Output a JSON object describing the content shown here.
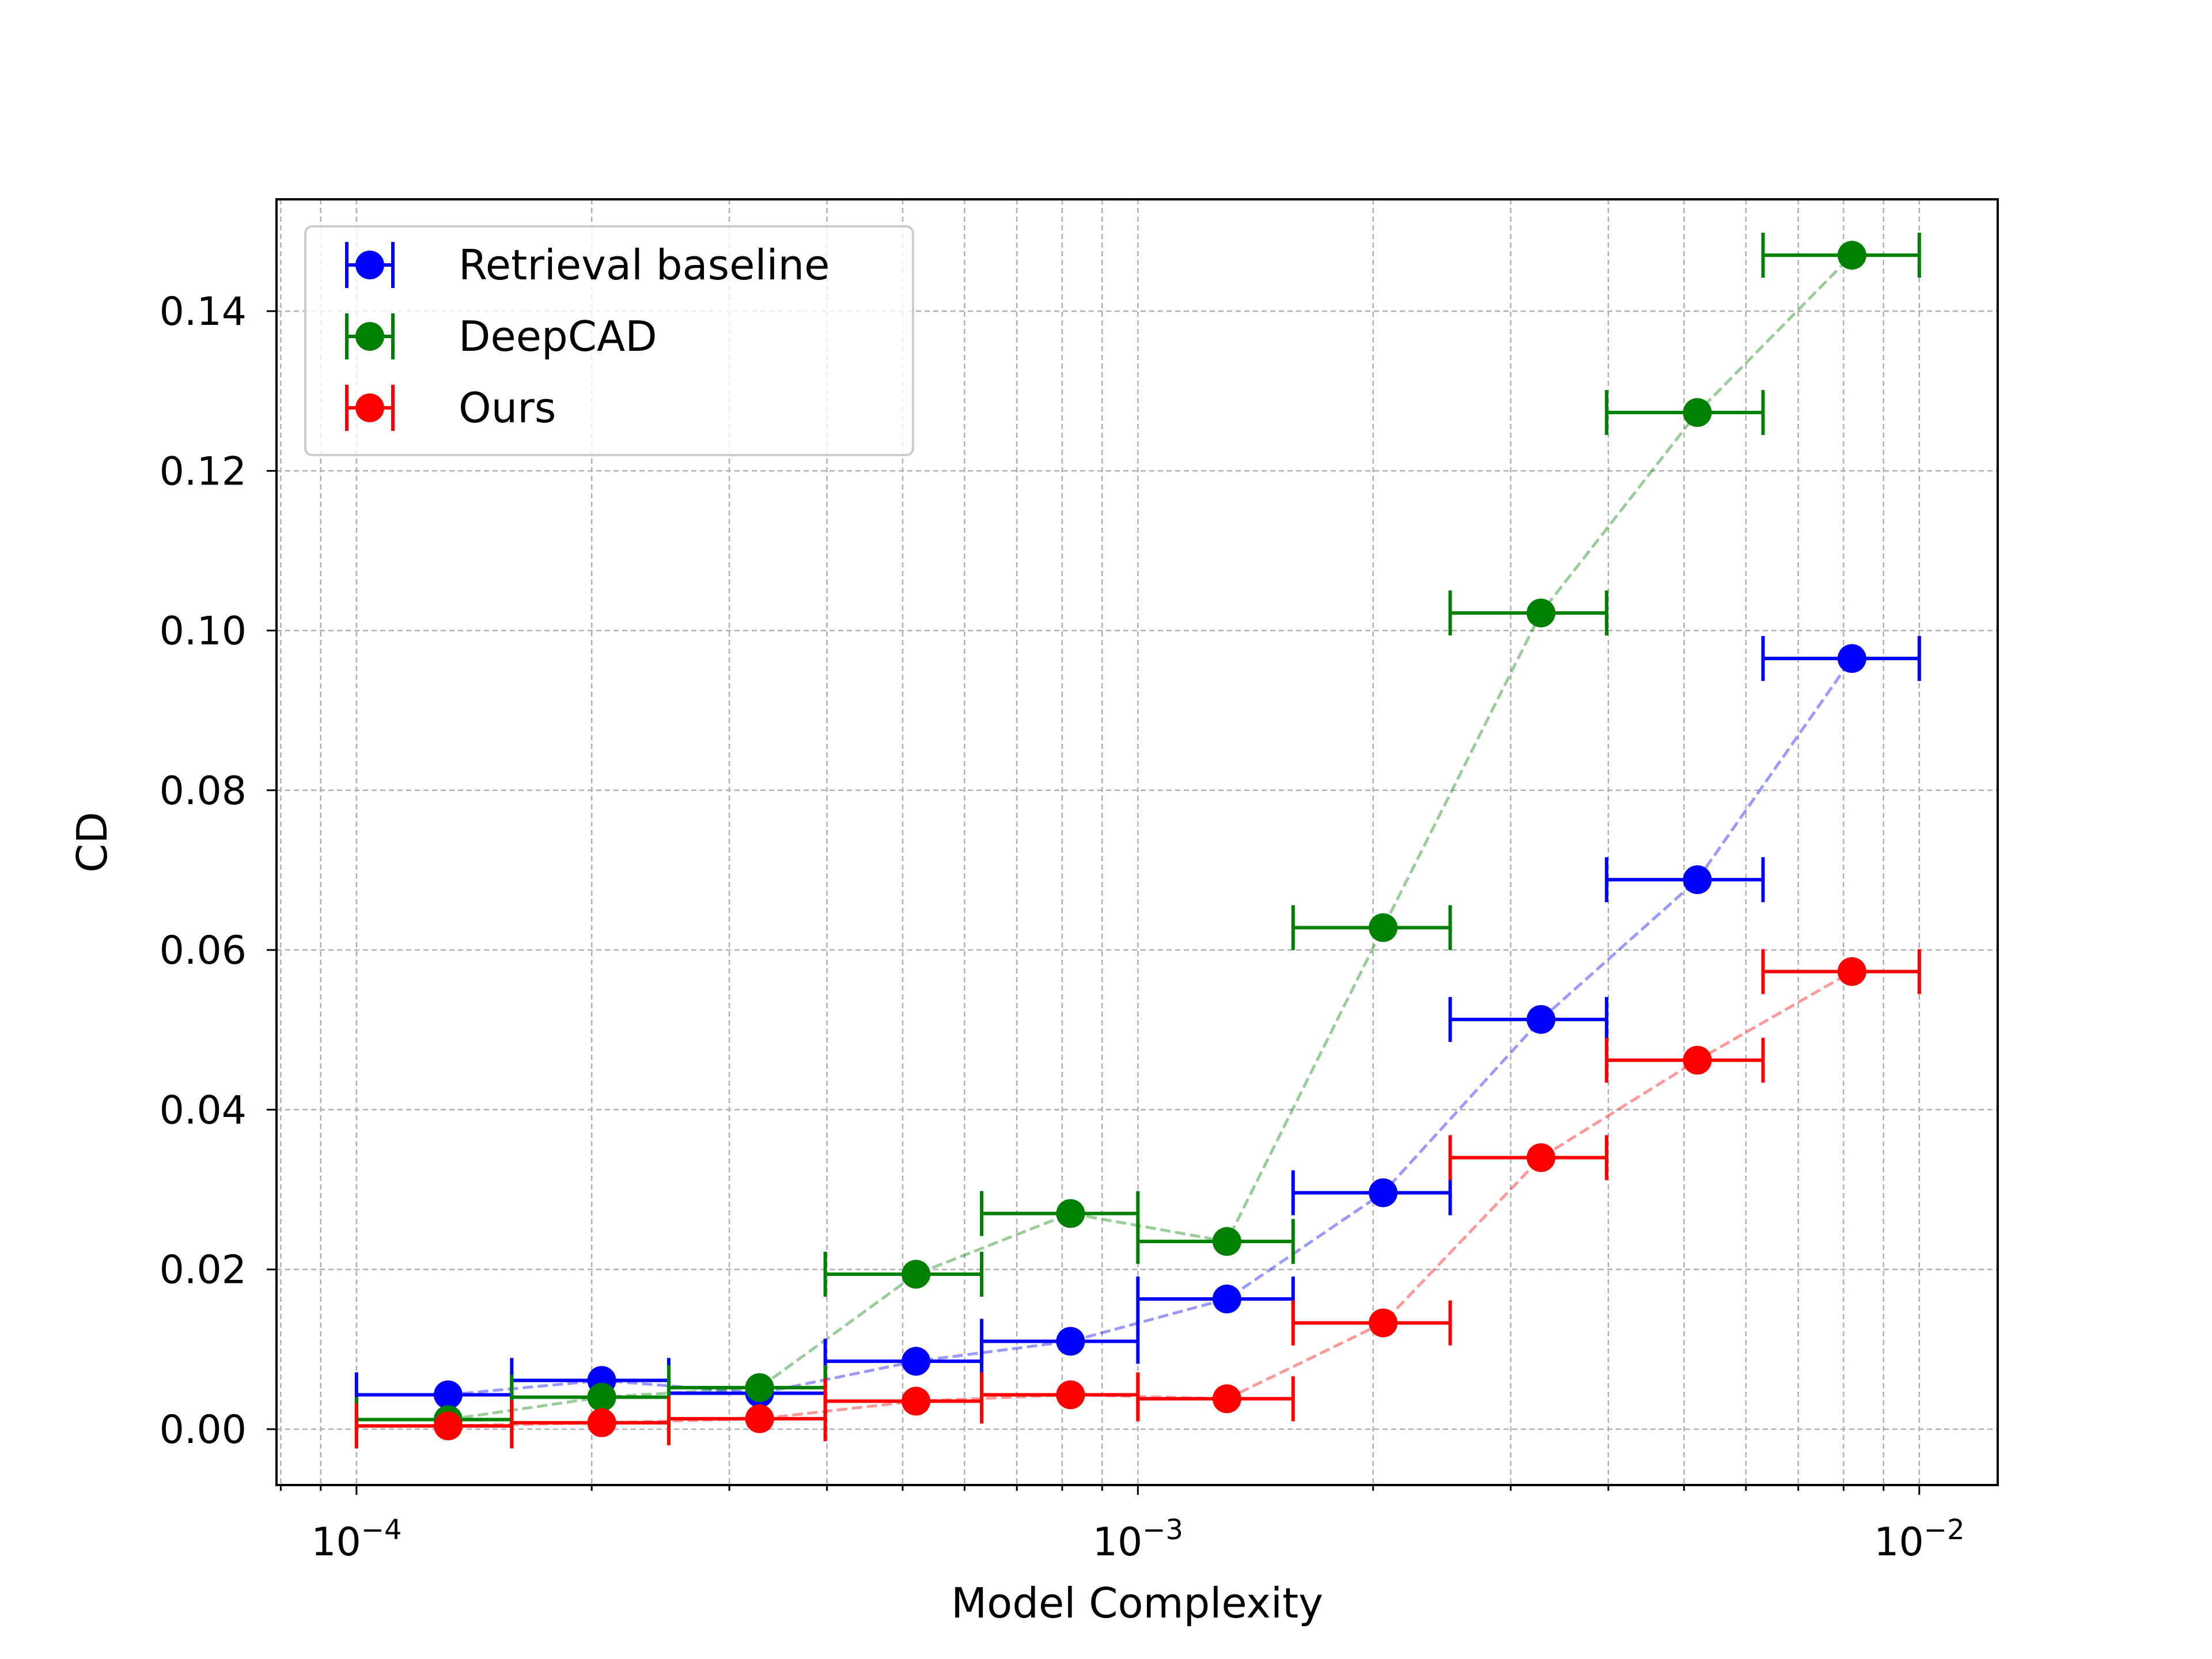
{
  "chart_data": {
    "type": "scatter",
    "title": "",
    "xlabel": "Model Complexity",
    "ylabel": "CD",
    "xscale": "log",
    "xlim": [
      7.9e-05,
      0.0126
    ],
    "ylim": [
      -0.007,
      0.154
    ],
    "grid": true,
    "legend_position": "top-left",
    "x_major_ticks": [
      0.0001,
      0.001,
      0.01
    ],
    "x_tick_labels": [
      {
        "base": "10",
        "exp": "−4"
      },
      {
        "base": "10",
        "exp": "−3"
      },
      {
        "base": "10",
        "exp": "−2"
      }
    ],
    "y_ticks": [
      0.0,
      0.02,
      0.04,
      0.06,
      0.08,
      0.1,
      0.12,
      0.14
    ],
    "y_tick_labels": [
      "0.00",
      "0.02",
      "0.04",
      "0.06",
      "0.08",
      "0.10",
      "0.12",
      "0.14"
    ],
    "bin_edges": [
      0.0001,
      0.000158,
      0.000251,
      0.000398,
      0.000631,
      0.001,
      0.00158,
      0.00251,
      0.00398,
      0.00631,
      0.01
    ],
    "x": [
      0.000131,
      0.000206,
      0.000328,
      0.00052,
      0.00082,
      0.0013,
      0.00206,
      0.00328,
      0.0052,
      0.0082
    ],
    "series": [
      {
        "name": "Retrieval baseline",
        "color": "#0000ff",
        "values": [
          0.0043,
          0.0061,
          0.0045,
          0.0085,
          0.011,
          0.0163,
          0.0296,
          0.0513,
          0.0688,
          0.0965
        ]
      },
      {
        "name": "DeepCAD",
        "color": "#008000",
        "values": [
          0.0012,
          0.004,
          0.0052,
          0.0194,
          0.027,
          0.0235,
          0.0628,
          0.1022,
          0.1273,
          0.147
        ]
      },
      {
        "name": "Ours",
        "color": "#ff0000",
        "values": [
          0.0004,
          0.0008,
          0.0013,
          0.0035,
          0.0043,
          0.0038,
          0.0133,
          0.034,
          0.0462,
          0.0573
        ]
      }
    ]
  }
}
